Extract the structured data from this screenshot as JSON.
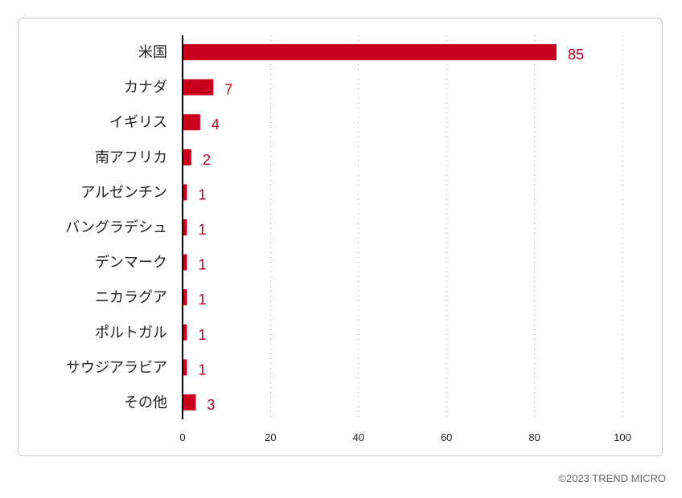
{
  "chart_data": {
    "type": "bar",
    "orientation": "horizontal",
    "categories": [
      "米国",
      "カナダ",
      "イギリス",
      "南アフリカ",
      "アルゼンチン",
      "バングラデシュ",
      "デンマーク",
      "ニカラグア",
      "ポルトガル",
      "サウジアラビア",
      "その他"
    ],
    "values": [
      85,
      7,
      4,
      2,
      1,
      1,
      1,
      1,
      1,
      1,
      3
    ],
    "xlim": [
      0,
      100
    ],
    "xticks": [
      0,
      20,
      40,
      60,
      80,
      100
    ],
    "grid": true,
    "colors": {
      "bar": "#c8001e",
      "value_label": "#c8001e"
    }
  },
  "footer": {
    "copyright": "©2023 TREND MICRO"
  }
}
